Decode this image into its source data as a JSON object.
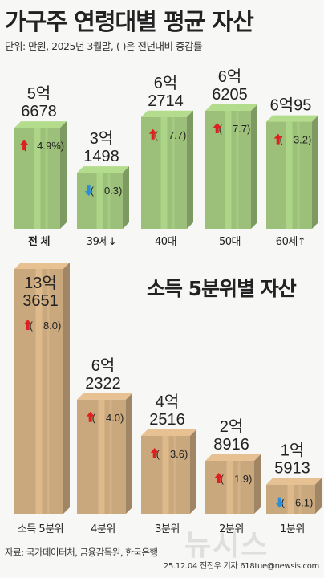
{
  "title": "가구주 연령대별 평균 자산",
  "subtitle": "단위: 만원, 2025년 3월말, ( )은 전년대비 증감률",
  "title2": "소득 5분위별 자산",
  "source": "자료: 국가데이터처, 금융감독원, 한국은행",
  "credit": "25.12.04 전진우 기자 618tue@newsis.com",
  "watermark": "뉴시스",
  "colors": {
    "age_box": "#9cc07a",
    "income_box": "#c9a87e",
    "up_arrow": "#e02020",
    "down_arrow": "#2a8fd6"
  },
  "chart_data": [
    {
      "type": "bar",
      "title": "가구주 연령대별 평균 자산",
      "unit": "만원",
      "categories": [
        "전 체",
        "39세↓",
        "40대",
        "50대",
        "60세↑"
      ],
      "values": [
        56678,
        31498,
        62714,
        66205,
        60095
      ],
      "value_labels": [
        [
          "5억",
          "6678"
        ],
        [
          "3억",
          "1498"
        ],
        [
          "6억",
          "2714"
        ],
        [
          "6억",
          "6205"
        ],
        [
          "6억95"
        ]
      ],
      "change_pct": [
        4.9,
        -0.3,
        7.7,
        7.7,
        3.2
      ],
      "change_labels": [
        "4.9%",
        "0.3",
        "7.7",
        "7.7",
        "3.2"
      ]
    },
    {
      "type": "bar",
      "title": "소득 5분위별 자산",
      "unit": "만원",
      "categories": [
        "소득 5분위",
        "4분위",
        "3분위",
        "2분위",
        "1분위"
      ],
      "values": [
        133651,
        62322,
        42516,
        28916,
        15913
      ],
      "value_labels": [
        [
          "13억",
          "3651"
        ],
        [
          "6억",
          "2322"
        ],
        [
          "4억",
          "2516"
        ],
        [
          "2억",
          "8916"
        ],
        [
          "1억",
          "5913"
        ]
      ],
      "change_pct": [
        8.0,
        4.0,
        3.6,
        1.9,
        -6.1
      ],
      "change_labels": [
        "8.0",
        "4.0",
        "3.6",
        "1.9",
        "6.1"
      ]
    }
  ]
}
